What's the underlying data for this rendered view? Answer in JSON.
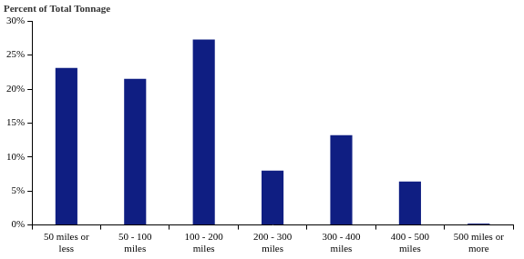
{
  "chart_data": {
    "type": "bar",
    "title": "Percent of Total Tonnage",
    "categories": [
      "50 miles or\nless",
      "50 - 100\nmiles",
      "100 - 200\nmiles",
      "200 - 300\nmiles",
      "300 - 400\nmiles",
      "400 - 500\nmiles",
      "500 miles or\nmore"
    ],
    "values": [
      23.1,
      21.5,
      27.3,
      8.0,
      13.2,
      6.4,
      0.2
    ],
    "color": "#0f1e82",
    "ylim": [
      0,
      30
    ],
    "yticks": [
      {
        "value": 0,
        "label": "0%"
      },
      {
        "value": 5,
        "label": "5%"
      },
      {
        "value": 10,
        "label": "10%"
      },
      {
        "value": 15,
        "label": "15%"
      },
      {
        "value": 20,
        "label": "20%"
      },
      {
        "value": 25,
        "label": "25%"
      },
      {
        "value": 30,
        "label": "30%"
      }
    ],
    "grid": false
  }
}
